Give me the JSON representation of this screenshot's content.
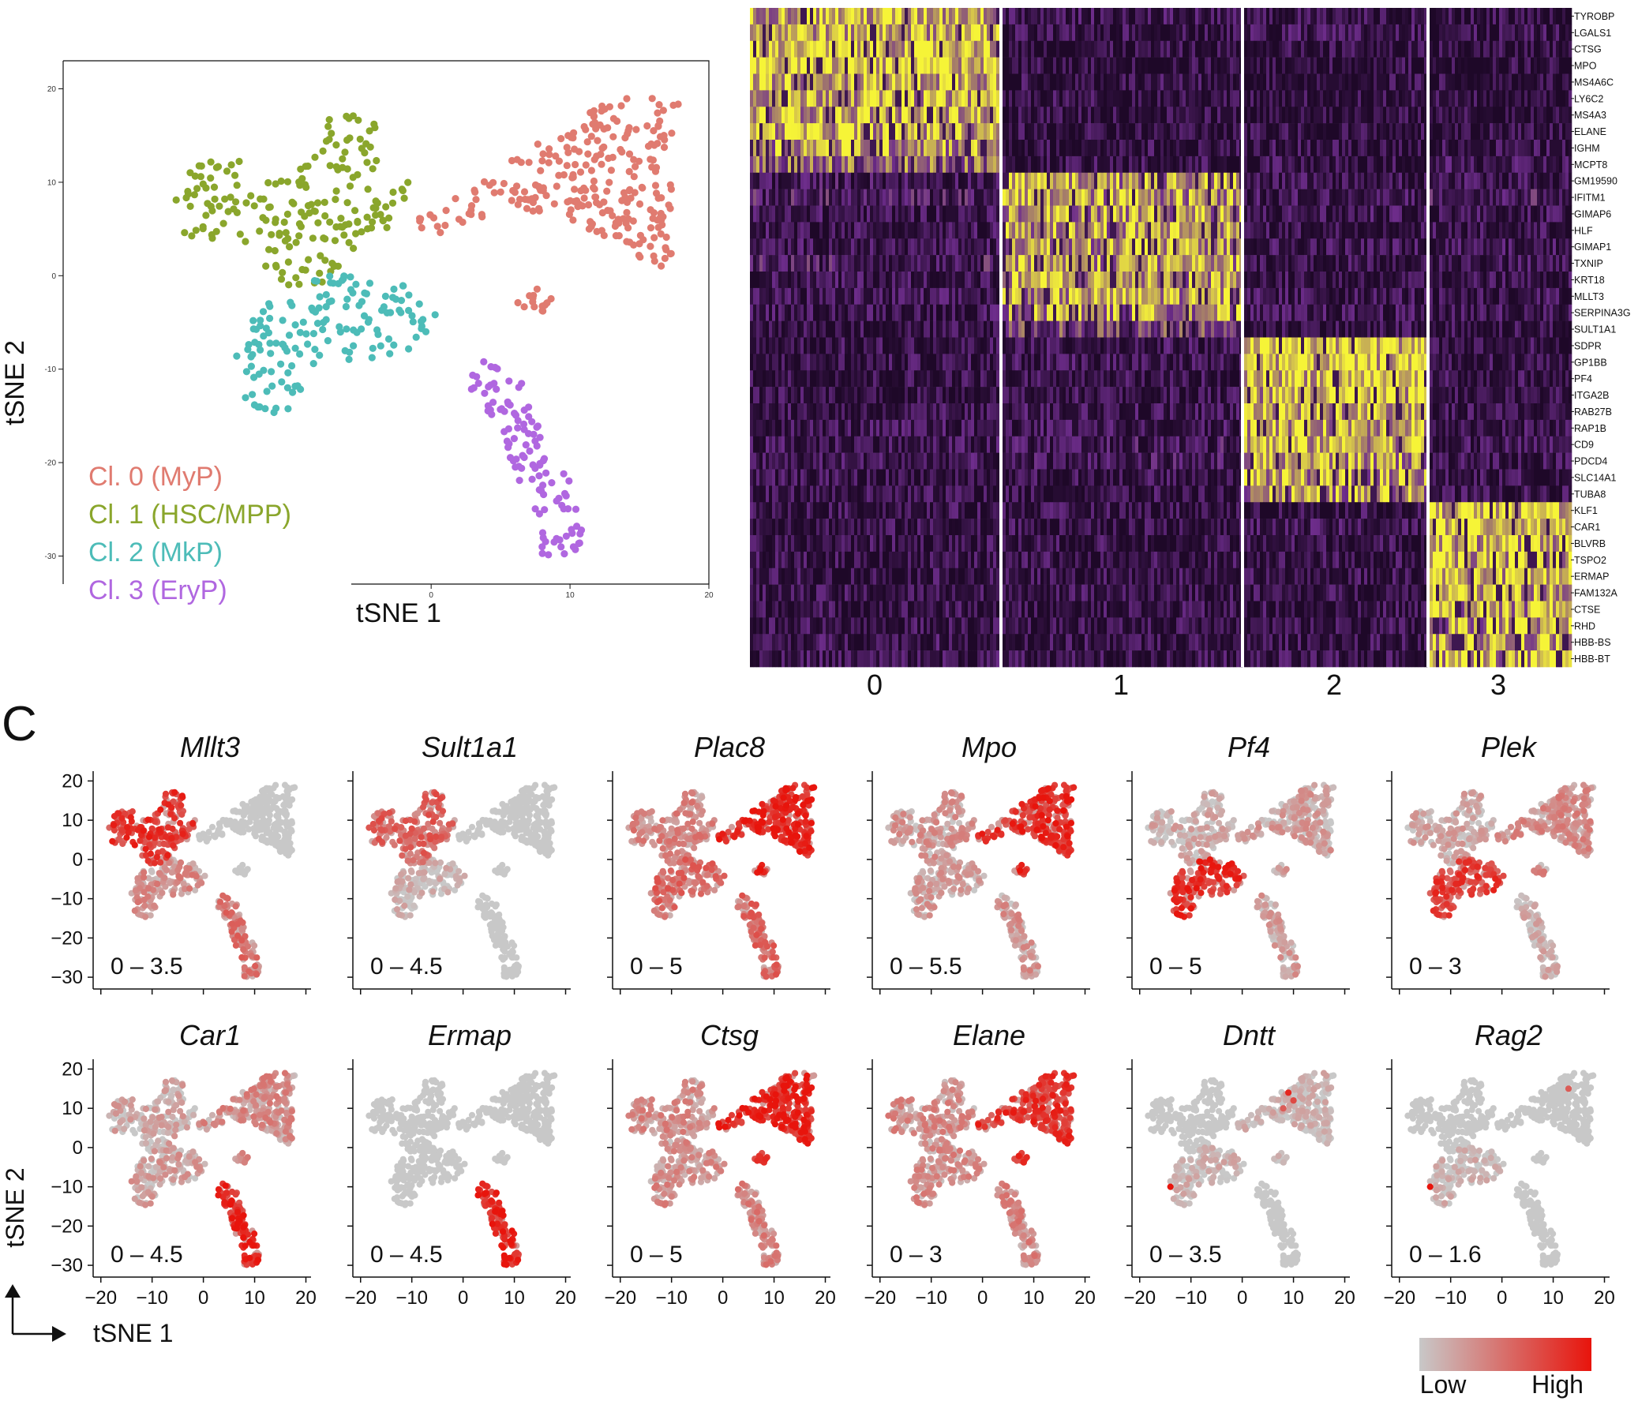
{
  "panel_c_label": "C",
  "tsne_main": {
    "xlabel": "tSNE 1",
    "ylabel": "tSNE 2",
    "xticks": [
      0,
      10,
      20
    ],
    "yticks": [
      20,
      10,
      0,
      -10,
      -20,
      -30
    ],
    "legend": [
      {
        "label": "Cl. 0 (MyP)",
        "color": "#e07b70"
      },
      {
        "label": "Cl. 1 (HSC/MPP)",
        "color": "#8aa62c"
      },
      {
        "label": "Cl. 2 (MkP)",
        "color": "#4dbcb8"
      },
      {
        "label": "Cl. 3 (EryP)",
        "color": "#b067e0"
      }
    ]
  },
  "heatmap": {
    "genes": [
      "TYROBP",
      "LGALS1",
      "CTSG",
      "MPO",
      "MS4A6C",
      "LY6C2",
      "MS4A3",
      "ELANE",
      "IGHM",
      "MCPT8",
      "GM19590",
      "IFITM1",
      "GIMAP6",
      "HLF",
      "GIMAP1",
      "TXNIP",
      "KRT18",
      "MLLT3",
      "SERPINA3G",
      "SULT1A1",
      "SDPR",
      "GP1BB",
      "PF4",
      "ITGA2B",
      "RAB27B",
      "RAP1B",
      "CD9",
      "PDCD4",
      "SLC14A1",
      "TUBA8",
      "KLF1",
      "CAR1",
      "BLVRB",
      "TSPO2",
      "ERMAP",
      "FAM132A",
      "CTSE",
      "RHD",
      "HBB-BS",
      "HBB-BT"
    ],
    "clusters": [
      "0",
      "1",
      "2",
      "3"
    ],
    "colors": {
      "low": "#2b0d3a",
      "mid": "#6a2e8e",
      "high": "#f6f437"
    }
  },
  "feature_plots": {
    "xlabel": "tSNE 1",
    "ylabel": "tSNE 2",
    "xticks": [
      "−20",
      "−10",
      "0",
      "10",
      "20"
    ],
    "yticks": [
      "20",
      "10",
      "0",
      "−10",
      "−20",
      "−30"
    ],
    "genes": [
      {
        "name": "Mllt3",
        "range": "0 – 3.5"
      },
      {
        "name": "Sult1a1",
        "range": "0 – 4.5"
      },
      {
        "name": "Plac8",
        "range": "0 – 5"
      },
      {
        "name": "Mpo",
        "range": "0 – 5.5"
      },
      {
        "name": "Pf4",
        "range": "0 – 5"
      },
      {
        "name": "Plek",
        "range": "0 – 3"
      },
      {
        "name": "Car1",
        "range": "0 – 4.5"
      },
      {
        "name": "Ermap",
        "range": "0 – 4.5"
      },
      {
        "name": "Ctsg",
        "range": "0 – 5"
      },
      {
        "name": "Elane",
        "range": "0 – 3"
      },
      {
        "name": "Dntt",
        "range": "0 – 3.5"
      },
      {
        "name": "Rag2",
        "range": "0 – 1.6"
      }
    ],
    "colorbar": {
      "low_label": "Low",
      "high_label": "High",
      "low_color": "#c8c8c8",
      "high_color": "#e8140c"
    }
  },
  "chart_data": [
    {
      "type": "scatter",
      "xlabel": "tSNE 1",
      "ylabel": "tSNE 2",
      "xlim": [
        -20,
        20
      ],
      "ylim": [
        -32,
        22
      ],
      "series": [
        {
          "name": "Cl. 0 (MyP)",
          "regions": [
            [
              [
                5,
                8
              ],
              [
                11,
                5
              ],
              [
                15,
                2
              ],
              [
                17,
                0
              ],
              [
                18,
                4
              ],
              [
                17,
                12
              ],
              [
                18,
                19
              ],
              [
                13,
                19
              ],
              [
                10,
                16
              ],
              [
                6,
                13
              ],
              [
                3,
                9
              ],
              [
                -1,
                7
              ],
              [
                -1,
                5
              ],
              [
                2,
                4
              ]
            ],
            [
              [
                6,
                -3
              ],
              [
                8,
                -1
              ],
              [
                9,
                -2
              ],
              [
                8,
                -4
              ]
            ]
          ]
        },
        {
          "name": "Cl. 1 (HSC/MPP)",
          "regions": [
            [
              [
                -19,
                7
              ],
              [
                -17,
                12
              ],
              [
                -15,
                13
              ],
              [
                -13,
                12
              ],
              [
                -11,
                11
              ],
              [
                -9,
                12
              ],
              [
                -8,
                17
              ],
              [
                -5,
                18
              ],
              [
                -3,
                14
              ],
              [
                -2,
                11
              ],
              [
                -1,
                8
              ],
              [
                -3,
                4
              ],
              [
                -6,
                2
              ],
              [
                -8,
                -1
              ],
              [
                -11,
                -1
              ],
              [
                -14,
                4
              ],
              [
                -18,
                4
              ]
            ]
          ]
        },
        {
          "name": "Cl. 2 (MkP)",
          "regions": [
            [
              [
                -14,
                -7
              ],
              [
                -12,
                -3
              ],
              [
                -10,
                -2
              ],
              [
                -8,
                0
              ],
              [
                -5,
                0
              ],
              [
                -2,
                -1
              ],
              [
                0,
                -3
              ],
              [
                1,
                -4
              ],
              [
                -1,
                -8
              ],
              [
                -4,
                -9
              ],
              [
                -8,
                -9
              ],
              [
                -10,
                -14
              ],
              [
                -12,
                -16
              ],
              [
                -14,
                -12
              ]
            ]
          ]
        },
        {
          "name": "Cl. 3 (EryP)",
          "regions": [
            [
              [
                2,
                -10
              ],
              [
                4,
                -9
              ],
              [
                7,
                -12
              ],
              [
                8,
                -17
              ],
              [
                10,
                -22
              ],
              [
                11,
                -28
              ],
              [
                10,
                -31
              ],
              [
                8,
                -30
              ],
              [
                7,
                -24
              ],
              [
                6,
                -21
              ],
              [
                5,
                -16
              ],
              [
                3,
                -13
              ]
            ]
          ]
        }
      ]
    },
    {
      "type": "heatmap",
      "rows": [
        "TYROBP",
        "LGALS1",
        "CTSG",
        "MPO",
        "MS4A6C",
        "LY6C2",
        "MS4A3",
        "ELANE",
        "IGHM",
        "MCPT8",
        "GM19590",
        "IFITM1",
        "GIMAP6",
        "HLF",
        "GIMAP1",
        "TXNIP",
        "KRT18",
        "MLLT3",
        "SERPINA3G",
        "SULT1A1",
        "SDPR",
        "GP1BB",
        "PF4",
        "ITGA2B",
        "RAB27B",
        "RAP1B",
        "CD9",
        "PDCD4",
        "SLC14A1",
        "TUBA8",
        "KLF1",
        "CAR1",
        "BLVRB",
        "TSPO2",
        "ERMAP",
        "FAM132A",
        "CTSE",
        "RHD",
        "HBB-BS",
        "HBB-BT"
      ],
      "columns": [
        "0",
        "1",
        "2",
        "3"
      ],
      "values": [
        [
          0.85,
          0.2,
          0.15,
          0.15
        ],
        [
          0.85,
          0.15,
          0.2,
          0.15
        ],
        [
          0.9,
          0.1,
          0.1,
          0.1
        ],
        [
          0.9,
          0.1,
          0.1,
          0.1
        ],
        [
          0.85,
          0.15,
          0.1,
          0.1
        ],
        [
          0.85,
          0.15,
          0.1,
          0.1
        ],
        [
          0.85,
          0.1,
          0.1,
          0.1
        ],
        [
          0.85,
          0.1,
          0.1,
          0.1
        ],
        [
          0.8,
          0.15,
          0.15,
          0.15
        ],
        [
          0.6,
          0.15,
          0.15,
          0.2
        ],
        [
          0.25,
          0.8,
          0.2,
          0.2
        ],
        [
          0.3,
          0.8,
          0.2,
          0.3
        ],
        [
          0.2,
          0.8,
          0.2,
          0.2
        ],
        [
          0.2,
          0.8,
          0.15,
          0.15
        ],
        [
          0.2,
          0.8,
          0.2,
          0.2
        ],
        [
          0.3,
          0.8,
          0.2,
          0.2
        ],
        [
          0.2,
          0.8,
          0.15,
          0.15
        ],
        [
          0.2,
          0.8,
          0.2,
          0.2
        ],
        [
          0.2,
          0.75,
          0.2,
          0.2
        ],
        [
          0.15,
          0.45,
          0.15,
          0.15
        ],
        [
          0.15,
          0.2,
          0.9,
          0.15
        ],
        [
          0.15,
          0.2,
          0.9,
          0.15
        ],
        [
          0.15,
          0.15,
          0.9,
          0.15
        ],
        [
          0.15,
          0.15,
          0.85,
          0.15
        ],
        [
          0.15,
          0.2,
          0.85,
          0.15
        ],
        [
          0.2,
          0.2,
          0.85,
          0.2
        ],
        [
          0.2,
          0.25,
          0.85,
          0.2
        ],
        [
          0.2,
          0.25,
          0.8,
          0.2
        ],
        [
          0.15,
          0.15,
          0.8,
          0.15
        ],
        [
          0.15,
          0.15,
          0.75,
          0.15
        ],
        [
          0.15,
          0.15,
          0.15,
          0.9
        ],
        [
          0.15,
          0.15,
          0.2,
          0.9
        ],
        [
          0.15,
          0.15,
          0.15,
          0.85
        ],
        [
          0.15,
          0.15,
          0.15,
          0.85
        ],
        [
          0.15,
          0.15,
          0.15,
          0.85
        ],
        [
          0.15,
          0.15,
          0.15,
          0.85
        ],
        [
          0.15,
          0.15,
          0.15,
          0.8
        ],
        [
          0.15,
          0.15,
          0.15,
          0.8
        ],
        [
          0.2,
          0.15,
          0.15,
          0.8
        ],
        [
          0.2,
          0.15,
          0.15,
          0.8
        ]
      ]
    },
    {
      "type": "scatter",
      "xlabel": "tSNE 1",
      "ylabel": "tSNE 2",
      "xlim": [
        -21,
        21
      ],
      "ylim": [
        -32,
        22
      ],
      "genes": [
        "Mllt3",
        "Sult1a1",
        "Plac8",
        "Mpo",
        "Pf4",
        "Plek",
        "Car1",
        "Ermap",
        "Ctsg",
        "Elane",
        "Dntt",
        "Rag2"
      ],
      "expression_by_cluster": {
        "Mllt3": {
          "Cl. 0": 0.0,
          "Cl. 1": 0.75,
          "Cl. 2": 0.25,
          "Cl. 3": 0.4
        },
        "Sult1a1": {
          "Cl. 0": 0.0,
          "Cl. 1": 0.5,
          "Cl. 2": 0.02,
          "Cl. 3": 0.0
        },
        "Plac8": {
          "Cl. 0": 0.85,
          "Cl. 1": 0.3,
          "Cl. 2": 0.45,
          "Cl. 3": 0.45
        },
        "Mpo": {
          "Cl. 0": 0.8,
          "Cl. 1": 0.2,
          "Cl. 2": 0.15,
          "Cl. 3": 0.2
        },
        "Pf4": {
          "Cl. 0": 0.15,
          "Cl. 1": 0.08,
          "Cl. 2": 0.8,
          "Cl. 3": 0.15
        },
        "Plek": {
          "Cl. 0": 0.25,
          "Cl. 1": 0.1,
          "Cl. 2": 0.7,
          "Cl. 3": 0.05
        },
        "Car1": {
          "Cl. 0": 0.25,
          "Cl. 1": 0.1,
          "Cl. 2": 0.15,
          "Cl. 3": 0.85
        },
        "Ermap": {
          "Cl. 0": 0.0,
          "Cl. 1": 0.0,
          "Cl. 2": 0.0,
          "Cl. 3": 0.85
        },
        "Ctsg": {
          "Cl. 0": 0.85,
          "Cl. 1": 0.25,
          "Cl. 2": 0.25,
          "Cl. 3": 0.3
        },
        "Elane": {
          "Cl. 0": 0.75,
          "Cl. 1": 0.25,
          "Cl. 2": 0.25,
          "Cl. 3": 0.3
        },
        "Dntt": {
          "Cl. 0": 0.02,
          "Cl. 1": 0.0,
          "Cl. 2": 0.02,
          "Cl. 3": 0.0
        },
        "Rag2": {
          "Cl. 0": 0.0,
          "Cl. 1": 0.0,
          "Cl. 2": 0.02,
          "Cl. 3": 0.0
        }
      }
    }
  ]
}
